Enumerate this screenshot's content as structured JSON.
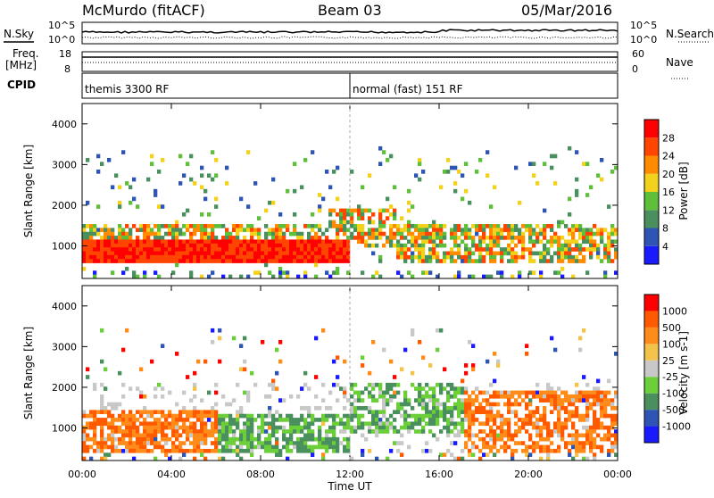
{
  "header": {
    "station": "McMurdo (fitACF)",
    "beam": "Beam 03",
    "date": "05/Mar/2016"
  },
  "summary_panel": {
    "left_labels": {
      "sky": "N.Sky",
      "freq": "Freq.",
      "freq_unit": "[MHz]",
      "cpid": "CPID"
    },
    "right_labels": {
      "search": "N.Search",
      "nave": "Nave"
    },
    "noise_ticks": [
      "10^5",
      "10^0"
    ],
    "freq_ticks": [
      "18",
      "8"
    ],
    "nave_ticks": [
      "60",
      "0"
    ],
    "cpid_segments": [
      {
        "label": "themis 3300 RF",
        "start_hour": 0,
        "end_hour": 12
      },
      {
        "label": "normal (fast) 151 RF",
        "start_hour": 12,
        "end_hour": 24
      }
    ]
  },
  "chart_data": [
    {
      "type": "heatmap",
      "name": "power",
      "ylabel": "Slant Range [km]",
      "xlim": [
        0,
        24
      ],
      "ylim": [
        200,
        4500
      ],
      "yticks": [
        1000,
        2000,
        3000,
        4000
      ],
      "colorbar": {
        "label": "Power [dB]",
        "ticks": [
          "28",
          "24",
          "20",
          "16",
          "12",
          "8",
          "4"
        ],
        "colors": [
          "#1a1aff",
          "#2e55b4",
          "#4a8f5e",
          "#5fbf3a",
          "#f2d21c",
          "#ff8c00",
          "#ff4500",
          "#ff0000"
        ]
      }
    },
    {
      "type": "heatmap",
      "name": "velocity",
      "ylabel": "Slant Range [km]",
      "xlabel": "Time UT",
      "xlim": [
        0,
        24
      ],
      "ylim": [
        200,
        4500
      ],
      "yticks": [
        1000,
        2000,
        3000,
        4000
      ],
      "xticks": [
        "00:00",
        "04:00",
        "08:00",
        "12:00",
        "16:00",
        "20:00",
        "00:00"
      ],
      "colorbar": {
        "label": "Velocity [m s-1]",
        "ticks": [
          "1000",
          "500",
          "100",
          "25",
          "-25",
          "-100",
          "-500",
          "-1000"
        ],
        "colors": [
          "#1a1aff",
          "#2e55b4",
          "#4a8f5e",
          "#6ccf3a",
          "#c8c8c8",
          "#f2c24a",
          "#ff8c1a",
          "#ff5a00",
          "#ff0000"
        ]
      }
    }
  ]
}
